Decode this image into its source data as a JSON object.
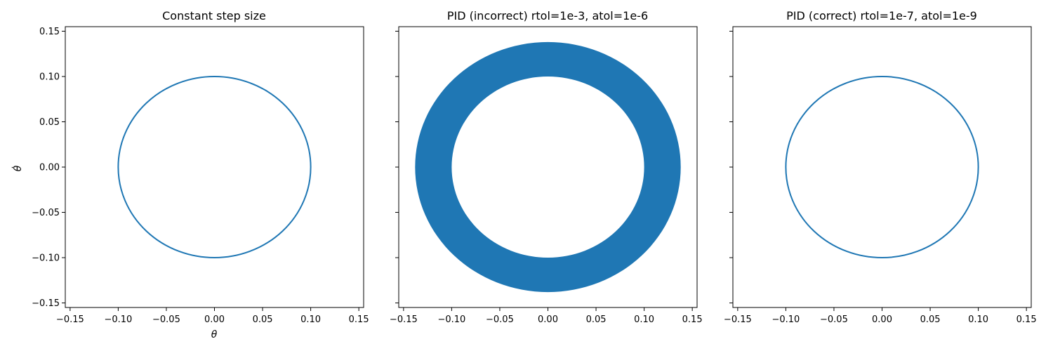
{
  "chart_data": [
    {
      "type": "line",
      "title": "Constant step size",
      "xlabel": "θ",
      "ylabel": "θ̇",
      "xlim": [
        -0.155,
        0.155
      ],
      "ylim": [
        -0.155,
        0.155
      ],
      "xticks": [
        -0.15,
        -0.1,
        -0.05,
        0.0,
        0.05,
        0.1,
        0.15
      ],
      "yticks": [
        -0.15,
        -0.1,
        -0.05,
        0.0,
        0.05,
        0.1,
        0.15
      ],
      "xtick_labels": [
        "−0.15",
        "−0.10",
        "−0.05",
        "0.00",
        "0.05",
        "0.10",
        "0.15"
      ],
      "ytick_labels": [
        "−0.15",
        "−0.10",
        "−0.05",
        "0.00",
        "0.05",
        "0.10",
        "0.15"
      ],
      "series": [
        {
          "shape": "circle",
          "center": [
            0.0,
            0.0
          ],
          "radius": 0.1,
          "color": "#1f77b4"
        }
      ]
    },
    {
      "type": "line",
      "title": "PID (incorrect) rtol=1e-3, atol=1e-6",
      "xlabel": "",
      "ylabel": "",
      "xlim": [
        -0.155,
        0.155
      ],
      "ylim": [
        -0.155,
        0.155
      ],
      "xticks": [
        -0.15,
        -0.1,
        -0.05,
        0.0,
        0.05,
        0.1,
        0.15
      ],
      "yticks": [
        -0.15,
        -0.1,
        -0.05,
        0.0,
        0.05,
        0.1,
        0.15
      ],
      "xtick_labels": [
        "−0.15",
        "−0.10",
        "−0.05",
        "0.00",
        "0.05",
        "0.10",
        "0.15"
      ],
      "ytick_labels": [],
      "series": [
        {
          "shape": "annulus",
          "center": [
            0.0,
            0.0
          ],
          "inner_radius": 0.1,
          "outer_radius": 0.138,
          "color": "#1f77b4"
        }
      ]
    },
    {
      "type": "line",
      "title": "PID (correct) rtol=1e-7, atol=1e-9",
      "xlabel": "",
      "ylabel": "",
      "xlim": [
        -0.155,
        0.155
      ],
      "ylim": [
        -0.155,
        0.155
      ],
      "xticks": [
        -0.15,
        -0.1,
        -0.05,
        0.0,
        0.05,
        0.1,
        0.15
      ],
      "yticks": [
        -0.15,
        -0.1,
        -0.05,
        0.0,
        0.05,
        0.1,
        0.15
      ],
      "xtick_labels": [
        "−0.15",
        "−0.10",
        "−0.05",
        "0.00",
        "0.05",
        "0.10",
        "0.15"
      ],
      "ytick_labels": [],
      "series": [
        {
          "shape": "circle",
          "center": [
            0.0,
            0.0
          ],
          "radius": 0.1,
          "color": "#1f77b4"
        }
      ]
    }
  ]
}
